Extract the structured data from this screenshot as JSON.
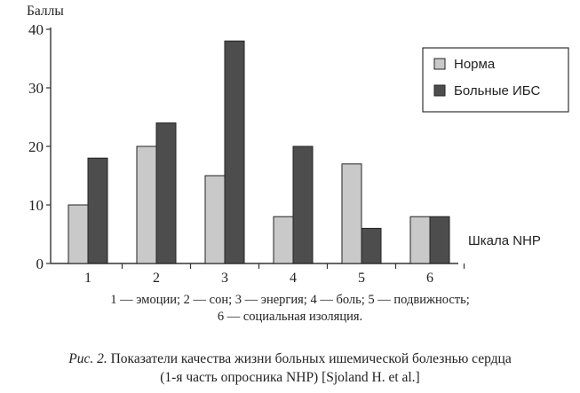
{
  "chart_data": {
    "type": "bar",
    "ylabel": "Баллы",
    "xlabel": "Шкала NHP",
    "categories": [
      "1",
      "2",
      "3",
      "4",
      "5",
      "6"
    ],
    "ylim": [
      0,
      40
    ],
    "yticks": [
      0,
      10,
      20,
      30,
      40
    ],
    "series": [
      {
        "name": "Норма",
        "values": [
          10,
          20,
          15,
          8,
          17,
          8
        ],
        "color": "#c9c9c9"
      },
      {
        "name": "Больные ИБС",
        "values": [
          18,
          24,
          38,
          20,
          6,
          8
        ],
        "color": "#4d4d4d"
      }
    ],
    "legend_position": "top-right",
    "grid": false
  },
  "note": {
    "line1": "1 — эмоции; 2 — сон; 3 — энергия; 4 — боль; 5 — подвижность;",
    "line2": "6 — социальная изоляция."
  },
  "caption": {
    "lead": "Рис. 2.",
    "line1": " Показатели качества жизни больных ишемической болезнью сердца",
    "line2": "(1-я часть опросника NHP) [Sjoland H. et al.]"
  }
}
